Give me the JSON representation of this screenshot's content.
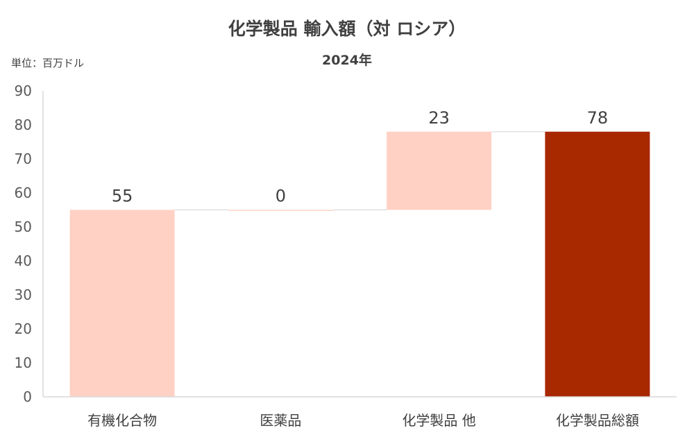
{
  "title": "化学製品 輸入額（対 ロシア）",
  "subtitle": "2024年",
  "unit_label": "単位：百万ドル",
  "colors": {
    "increase": "#FFD1C4",
    "total": "#A82800",
    "axis": "#D9D9D9",
    "text": "#404040"
  },
  "chart_data": {
    "type": "bar",
    "subtype": "waterfall",
    "title": "化学製品 輸入額（対 ロシア）",
    "subtitle": "2024年",
    "xlabel": "",
    "ylabel": "単位：百万ドル",
    "ylim": [
      0,
      90
    ],
    "yticks": [
      0,
      10,
      20,
      30,
      40,
      50,
      60,
      70,
      80,
      90
    ],
    "grid": false,
    "categories": [
      "有機化合物",
      "医薬品",
      "化学製品 他",
      "化学製品総額"
    ],
    "values": [
      55,
      0,
      23,
      78
    ],
    "data_labels": [
      "55",
      "0",
      "23",
      "78"
    ],
    "is_total": [
      false,
      false,
      false,
      true
    ]
  }
}
